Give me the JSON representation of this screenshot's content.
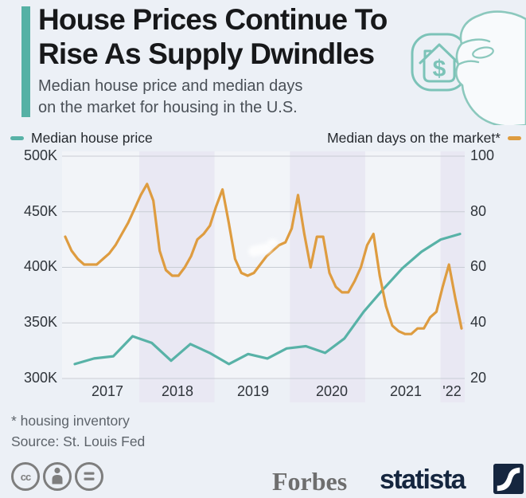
{
  "header": {
    "title_line1": "House Prices Continue To",
    "title_line2": "Rise As Supply Dwindles",
    "subtitle_line1": "Median house price and median days",
    "subtitle_line2": "on the market for housing in the U.S."
  },
  "legend": {
    "price_label": "Median house price",
    "days_label": "Median days on the market*",
    "price_color": "#58b2a7",
    "days_color": "#de9c40"
  },
  "chart_data": {
    "type": "line",
    "title": "Median house price and median days on the market for housing in the U.S.",
    "x_axis": {
      "labels": [
        "2017",
        "2018",
        "2019",
        "2020",
        "2021",
        "'22"
      ]
    },
    "y_left": {
      "label": "Median house price",
      "unit": "USD",
      "ticks": [
        "500K",
        "450K",
        "400K",
        "350K",
        "300K"
      ],
      "tick_values": [
        500,
        450,
        400,
        350,
        300
      ],
      "min": 300,
      "max": 500
    },
    "y_right": {
      "label": "Median days on the market",
      "unit": "days",
      "ticks": [
        "100",
        "80",
        "60",
        "40",
        "20"
      ],
      "tick_values": [
        100,
        80,
        60,
        40,
        20
      ],
      "min": 20,
      "max": 100
    },
    "shaded_years": [
      2018,
      2020,
      2022
    ],
    "grid": true,
    "band_color": "#e9e8f3",
    "grid_color": "#c9cdd4",
    "series": [
      {
        "name": "Median house price",
        "axis": "left",
        "color": "#58b2a7",
        "frequency": "quarterly",
        "start": "2017-Q1",
        "unit": "thousand USD",
        "values": [
          313,
          318,
          320,
          338,
          332,
          316,
          331,
          323,
          313,
          322,
          318,
          327,
          329,
          323,
          336,
          360,
          380,
          399,
          414,
          425,
          430
        ]
      },
      {
        "name": "Median days on the market",
        "axis": "right",
        "color": "#de9c40",
        "frequency": "monthly",
        "start": "2017-01",
        "unit": "days",
        "values": [
          71,
          66,
          63,
          61,
          61,
          61,
          63,
          65,
          68,
          72,
          76,
          81,
          86,
          90,
          84,
          66,
          59,
          57,
          57,
          60,
          64,
          70,
          72,
          75,
          82,
          88,
          76,
          63,
          58,
          57,
          58,
          61,
          64,
          66,
          68,
          69,
          74,
          86,
          72,
          60,
          71,
          71,
          58,
          53,
          51,
          51,
          55,
          60,
          68,
          72,
          57,
          46,
          39,
          37,
          36,
          36,
          38,
          38,
          42,
          44,
          53,
          61,
          49,
          38
        ]
      }
    ]
  },
  "footnotes": {
    "note": "* housing inventory",
    "source": "Source: St. Louis Fed"
  },
  "branding": {
    "cc_label": "cc",
    "forbes": "Forbes",
    "statista": "statista"
  }
}
